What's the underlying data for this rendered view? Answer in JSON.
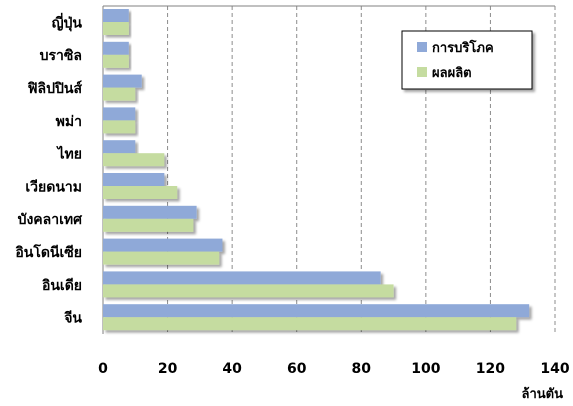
{
  "chart_data": {
    "type": "bar",
    "orientation": "horizontal",
    "categories": [
      "ญี่ปุ่น",
      "บราซิล",
      "ฟิลิปปินส์",
      "พม่า",
      "ไทย",
      "เวียดนาม",
      "บังคลาเทศ",
      "อินโดนีเซีย",
      "อินเดีย",
      "จีน"
    ],
    "series": [
      {
        "name": "การบริโภค",
        "color": "#8fa9d8",
        "values": [
          8,
          8,
          12,
          10,
          10,
          19,
          29,
          37,
          86,
          132
        ]
      },
      {
        "name": "ผลผลิต",
        "color": "#c5dca0",
        "values": [
          8,
          8,
          10,
          10,
          19,
          23,
          28,
          36,
          90,
          128
        ]
      }
    ],
    "x_ticks": [
      "0",
      "20",
      "40",
      "60",
      "80",
      "100",
      "120",
      "140"
    ],
    "xlim": [
      0,
      140
    ],
    "x_unit": "ล้านตัน",
    "grid": "vertical dashed",
    "legend_position": "top-right"
  }
}
